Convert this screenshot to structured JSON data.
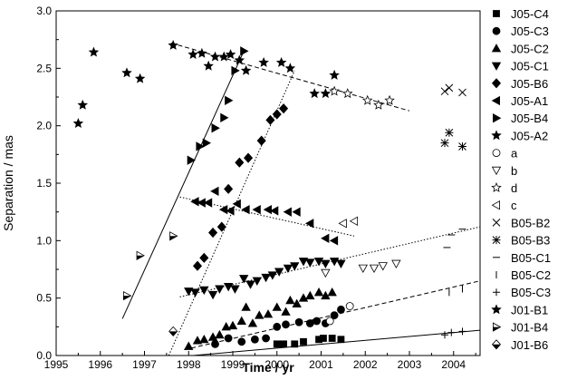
{
  "chart_data": {
    "type": "scatter",
    "xlabel": "Time / yr",
    "ylabel": "Separation / mas",
    "xlim": [
      1995,
      2004.6
    ],
    "ylim": [
      0,
      3.0
    ],
    "x_ticks": [
      "1995",
      "1996",
      "1997",
      "1998",
      "1999",
      "2000",
      "2001",
      "2002",
      "2003",
      "2004"
    ],
    "y_ticks": [
      "0.0",
      "0.5",
      "1.0",
      "1.5",
      "2.0",
      "2.5",
      "3.0"
    ],
    "grid": false,
    "legend_position": "right",
    "series": [
      {
        "name": "J05-C4",
        "marker": "square-filled",
        "points": [
          [
            2000.0,
            0.1
          ],
          [
            2000.15,
            0.1
          ],
          [
            2000.4,
            0.1
          ],
          [
            2000.6,
            0.12
          ],
          [
            2000.95,
            0.14
          ],
          [
            2001.05,
            0.15
          ],
          [
            2001.25,
            0.15
          ],
          [
            2001.45,
            0.14
          ]
        ]
      },
      {
        "name": "J05-C3",
        "marker": "circle-filled",
        "points": [
          [
            1998.6,
            0.1
          ],
          [
            1998.9,
            0.15
          ],
          [
            1999.2,
            0.12
          ],
          [
            1999.5,
            0.14
          ],
          [
            1999.75,
            0.15
          ],
          [
            2000.0,
            0.25
          ],
          [
            2000.2,
            0.27
          ],
          [
            2000.5,
            0.29
          ],
          [
            2000.75,
            0.28
          ],
          [
            2000.9,
            0.3
          ],
          [
            2001.1,
            0.28
          ],
          [
            2001.3,
            0.35
          ],
          [
            2001.45,
            0.4
          ]
        ]
      },
      {
        "name": "J05-C2",
        "marker": "triangle-up-filled",
        "points": [
          [
            1998.0,
            0.08
          ],
          [
            1998.2,
            0.13
          ],
          [
            1998.35,
            0.14
          ],
          [
            1998.55,
            0.16
          ],
          [
            1998.7,
            0.18
          ],
          [
            1998.85,
            0.25
          ],
          [
            1999.0,
            0.26
          ],
          [
            1999.2,
            0.3
          ],
          [
            1999.3,
            0.42
          ],
          [
            1999.45,
            0.28
          ],
          [
            1999.6,
            0.35
          ],
          [
            1999.8,
            0.36
          ],
          [
            2000.0,
            0.42
          ],
          [
            2000.2,
            0.38
          ],
          [
            2000.3,
            0.48
          ],
          [
            2000.45,
            0.45
          ],
          [
            2000.6,
            0.5
          ],
          [
            2000.75,
            0.52
          ],
          [
            2000.95,
            0.55
          ],
          [
            2001.1,
            0.52
          ],
          [
            2001.25,
            0.55
          ]
        ]
      },
      {
        "name": "J05-C1",
        "marker": "triangle-down-filled",
        "points": [
          [
            1998.0,
            0.56
          ],
          [
            1998.15,
            0.55
          ],
          [
            1998.35,
            0.57
          ],
          [
            1998.55,
            0.53
          ],
          [
            1998.7,
            0.58
          ],
          [
            1998.9,
            0.6
          ],
          [
            1999.05,
            0.58
          ],
          [
            1999.25,
            0.67
          ],
          [
            1999.4,
            0.62
          ],
          [
            1999.55,
            0.65
          ],
          [
            1999.75,
            0.68
          ],
          [
            1999.9,
            0.7
          ],
          [
            2000.05,
            0.73
          ],
          [
            2000.25,
            0.76
          ],
          [
            2000.4,
            0.78
          ],
          [
            2000.6,
            0.82
          ],
          [
            2000.75,
            0.81
          ],
          [
            2000.95,
            0.82
          ],
          [
            2001.1,
            0.8
          ],
          [
            2001.3,
            0.82
          ],
          [
            2001.45,
            0.8
          ]
        ]
      },
      {
        "name": "J05-B6",
        "marker": "diamond-filled",
        "points": [
          [
            1998.2,
            0.78
          ],
          [
            1998.35,
            0.85
          ],
          [
            1998.55,
            1.07
          ],
          [
            1998.75,
            1.12
          ],
          [
            1998.9,
            1.45
          ],
          [
            1999.15,
            1.68
          ],
          [
            1999.35,
            1.72
          ],
          [
            1999.65,
            1.87
          ],
          [
            1999.85,
            2.05
          ],
          [
            2000.0,
            2.1
          ],
          [
            2000.15,
            2.15
          ]
        ]
      },
      {
        "name": "J05-A1",
        "marker": "triangle-left-filled",
        "points": [
          [
            1998.15,
            1.34
          ],
          [
            1998.3,
            1.33
          ],
          [
            1998.45,
            1.33
          ],
          [
            1998.6,
            1.43
          ],
          [
            1998.8,
            1.27
          ],
          [
            1998.95,
            1.26
          ],
          [
            1999.1,
            1.32
          ],
          [
            1999.3,
            1.27
          ],
          [
            1999.55,
            1.27
          ],
          [
            1999.8,
            1.27
          ],
          [
            1999.95,
            1.26
          ],
          [
            2000.25,
            1.25
          ],
          [
            2000.45,
            1.25
          ],
          [
            2000.75,
            1.15
          ],
          [
            2001.1,
            1.02
          ],
          [
            2001.3,
            1.0
          ]
        ]
      },
      {
        "name": "J05-B4",
        "marker": "triangle-right-filled",
        "points": [
          [
            1998.05,
            1.7
          ],
          [
            1998.25,
            1.82
          ],
          [
            1998.4,
            1.85
          ],
          [
            1998.6,
            1.98
          ],
          [
            1998.8,
            2.07
          ],
          [
            1998.9,
            2.22
          ],
          [
            1999.05,
            2.48
          ],
          [
            1999.25,
            2.65
          ]
        ]
      },
      {
        "name": "J05-A2",
        "marker": "star-filled",
        "points": [
          [
            1998.1,
            2.62
          ],
          [
            1998.3,
            2.63
          ],
          [
            1998.45,
            2.52
          ],
          [
            1998.6,
            2.6
          ],
          [
            1998.8,
            2.6
          ],
          [
            1998.95,
            2.62
          ],
          [
            1999.15,
            2.57
          ],
          [
            1999.3,
            2.48
          ],
          [
            1999.7,
            2.55
          ],
          [
            2000.1,
            2.55
          ],
          [
            2000.3,
            2.5
          ],
          [
            2000.85,
            2.28
          ],
          [
            2001.1,
            2.28
          ],
          [
            2001.3,
            2.44
          ]
        ]
      },
      {
        "name": "a",
        "marker": "circle-open",
        "points": [
          [
            2001.2,
            0.3
          ],
          [
            2001.65,
            0.43
          ]
        ]
      },
      {
        "name": "b",
        "marker": "triangle-down-open",
        "points": [
          [
            2001.1,
            0.72
          ],
          [
            2001.95,
            0.76
          ],
          [
            2002.2,
            0.76
          ],
          [
            2002.4,
            0.78
          ],
          [
            2002.7,
            0.8
          ]
        ]
      },
      {
        "name": "d",
        "marker": "star-open",
        "points": [
          [
            2001.3,
            2.3
          ],
          [
            2001.6,
            2.28
          ],
          [
            2002.05,
            2.22
          ],
          [
            2002.3,
            2.18
          ],
          [
            2002.55,
            2.22
          ]
        ]
      },
      {
        "name": "c",
        "marker": "triangle-left-open",
        "points": [
          [
            2001.5,
            1.15
          ],
          [
            2001.75,
            1.17
          ]
        ]
      },
      {
        "name": "B05-B2",
        "marker": "x",
        "points": [
          [
            2003.8,
            2.3
          ],
          [
            2003.9,
            2.33
          ],
          [
            2004.2,
            2.29
          ]
        ]
      },
      {
        "name": "B05-B3",
        "marker": "asterisk",
        "points": [
          [
            2003.8,
            1.85
          ],
          [
            2003.9,
            1.94
          ],
          [
            2004.2,
            1.82
          ]
        ]
      },
      {
        "name": "B05-C1",
        "marker": "hline",
        "points": [
          [
            2003.85,
            0.94
          ],
          [
            2003.95,
            1.05
          ],
          [
            2004.2,
            1.1
          ]
        ]
      },
      {
        "name": "B05-C2",
        "marker": "vline",
        "points": [
          [
            2003.9,
            0.55
          ],
          [
            2004.2,
            0.58
          ]
        ]
      },
      {
        "name": "B05-C3",
        "marker": "plus",
        "points": [
          [
            2003.8,
            0.18
          ],
          [
            2003.95,
            0.2
          ],
          [
            2004.2,
            0.21
          ]
        ]
      },
      {
        "name": "J01-B1",
        "marker": "star-filled",
        "points": [
          [
            1995.5,
            2.02
          ],
          [
            1995.6,
            2.18
          ],
          [
            1995.85,
            2.64
          ],
          [
            1996.6,
            2.46
          ],
          [
            1996.9,
            2.41
          ],
          [
            1997.65,
            2.7
          ]
        ]
      },
      {
        "name": "J01-B4",
        "marker": "triangle-right-half",
        "points": [
          [
            1996.6,
            0.52
          ],
          [
            1996.9,
            0.87
          ],
          [
            1997.65,
            1.04
          ]
        ]
      },
      {
        "name": "J01-B6",
        "marker": "diamond-half",
        "points": [
          [
            1997.65,
            0.21
          ]
        ]
      }
    ],
    "fit_lines": [
      {
        "style": "solid",
        "from": [
          1996.5,
          0.32
        ],
        "to": [
          1999.25,
          2.65
        ]
      },
      {
        "style": "dotted",
        "from": [
          1997.55,
          0.0
        ],
        "to": [
          2000.4,
          2.48
        ]
      },
      {
        "style": "dashed",
        "from": [
          1997.6,
          2.72
        ],
        "to": [
          2003.0,
          2.13
        ]
      },
      {
        "style": "dotted",
        "from": [
          1997.8,
          1.38
        ],
        "to": [
          2001.75,
          1.04
        ]
      },
      {
        "style": "dotted",
        "from": [
          1997.8,
          0.51
        ],
        "to": [
          2004.6,
          1.12
        ]
      },
      {
        "style": "dashed",
        "from": [
          1997.9,
          0.05
        ],
        "to": [
          2004.6,
          0.65
        ]
      },
      {
        "style": "solid",
        "from": [
          1998.1,
          0.0
        ],
        "to": [
          2004.6,
          0.22
        ]
      }
    ]
  }
}
